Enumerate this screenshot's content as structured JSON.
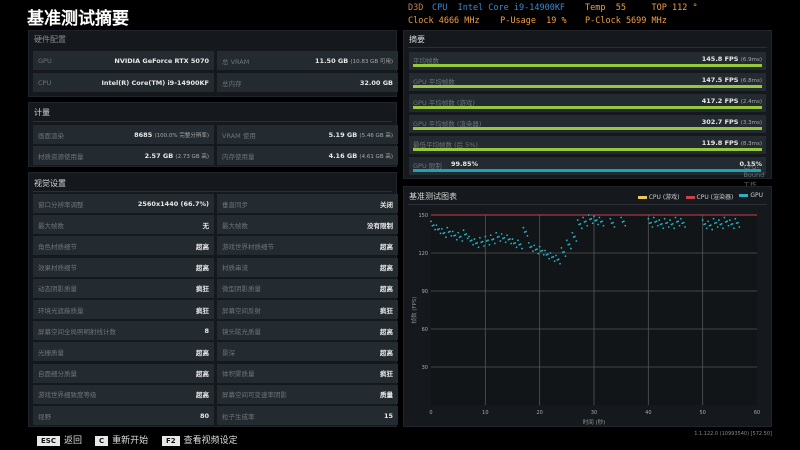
{
  "osd": {
    "line1": "D3D",
    "cpu": "CPU  Intel Core i9-14900KF",
    "temp": "Temp  55     TOP 112 °",
    "clock": "Clock 4666 MHz    P-Usage  19 %",
    "pclock": "P-Clock 5699 MHz"
  },
  "title": "基准测试摘要",
  "hardware": {
    "title": "硬件配置",
    "rows": [
      [
        {
          "label": "GPU",
          "value": "NVIDIA GeForce RTX 5070",
          "extra": ""
        },
        {
          "label": "总 VRAM",
          "value": "11.50 GB",
          "extra": "(10.83 GB 可用)"
        }
      ],
      [
        {
          "label": "CPU",
          "value": "Intel(R) Core(TM) i9-14900KF",
          "extra": ""
        },
        {
          "label": "总内存",
          "value": "32.00 GB",
          "extra": ""
        }
      ]
    ]
  },
  "metrics": {
    "title": "计量",
    "rows": [
      [
        {
          "label": "画面渲染",
          "value": "8685",
          "extra": "(100.0% 完整分辨率)"
        },
        {
          "label": "VRAM 使用",
          "value": "5.19 GB",
          "extra": "(5.46 GB 高)"
        }
      ],
      [
        {
          "label": "材质资源使用量",
          "value": "2.57 GB",
          "extra": "(2.73 GB 高)"
        },
        {
          "label": "内存使用量",
          "value": "4.16 GB",
          "extra": "(4.61 GB 高)"
        }
      ]
    ]
  },
  "visual": {
    "title": "视觉设置",
    "rows": [
      [
        {
          "label": "窗口分辨率调整",
          "value": "2560x1440 (66.7%)"
        },
        {
          "label": "垂直同步",
          "value": "关闭"
        }
      ],
      [
        {
          "label": "最大帧数",
          "value": "无"
        },
        {
          "label": "最大帧数",
          "value": "没有限制"
        }
      ],
      [
        {
          "label": "角色材质细节",
          "value": "超高"
        },
        {
          "label": "游戏世界材质细节",
          "value": "超高"
        }
      ],
      [
        {
          "label": "效果材质细节",
          "value": "超高"
        },
        {
          "label": "材质串流",
          "value": "超高"
        }
      ],
      [
        {
          "label": "动态阴影质量",
          "value": "疯狂"
        },
        {
          "label": "微型阴影质量",
          "value": "超高"
        }
      ],
      [
        {
          "label": "环境光遮蔽质量",
          "value": "疯狂"
        },
        {
          "label": "屏幕空间反射",
          "value": "疯狂"
        }
      ],
      [
        {
          "label": "屏幕空间全局照明射线计数",
          "value": "8"
        },
        {
          "label": "镜头眩光质量",
          "value": "超高"
        }
      ],
      [
        {
          "label": "光栅质量",
          "value": "超高"
        },
        {
          "label": "景深",
          "value": "超高"
        }
      ],
      [
        {
          "label": "自面细分质量",
          "value": "超高"
        },
        {
          "label": "体积雾质量",
          "value": "疯狂"
        }
      ],
      [
        {
          "label": "游戏世界细致度等级",
          "value": "超高"
        },
        {
          "label": "屏幕空间可变速率阴影",
          "value": "质量"
        }
      ],
      [
        {
          "label": "视野",
          "value": "80"
        },
        {
          "label": "粒子生成率",
          "value": "15"
        }
      ]
    ]
  },
  "summary": {
    "title": "摘要",
    "rows": [
      {
        "label": "平均帧数",
        "value": "145.8 FPS",
        "extra": "(6.9ms)",
        "fill": 1
      },
      {
        "label": "GPU 平均帧数",
        "value": "147.5 FPS",
        "extra": "(6.8ms)",
        "fill": 1
      },
      {
        "label": "GPU 平均帧数 (游戏)",
        "value": "417.2 FPS",
        "extra": "(2.4ms)",
        "fill": 1
      },
      {
        "label": "GPU 平均帧数 (渲染器)",
        "value": "302.7 FPS",
        "extra": "(3.3ms)",
        "fill": 1
      },
      {
        "label": "最低平均帧数 (后 5%)",
        "value": "119.8 FPS",
        "extra": "(8.3ms)",
        "fill": 1
      }
    ],
    "gpu_bound": {
      "label": "GPU 限制",
      "pct": "99.85%",
      "cpu_pct": "0.15%",
      "cpu_label": "CPU-Bound 工作",
      "fill": 0.9985
    }
  },
  "chart_data": {
    "type": "scatter",
    "title": "基准测试图表",
    "xlabel": "时间 (秒)",
    "ylabel": "帧数 (FPS)",
    "xlim": [
      0,
      60
    ],
    "ylim": [
      0,
      150
    ],
    "xticks": [
      "0",
      "10",
      "20",
      "30",
      "40",
      "50",
      "60"
    ],
    "yticks": [
      "30",
      "60",
      "90",
      "120",
      "150"
    ],
    "grid": true,
    "legend": "top-right",
    "series": [
      {
        "name": "CPU (游戏)",
        "color": "#e8c85a",
        "x": [],
        "y": []
      },
      {
        "name": "CPU (渲染器)",
        "color": "#c8404a",
        "x": [
          0,
          60
        ],
        "y": [
          150,
          150
        ]
      },
      {
        "name": "GPU",
        "color": "#2ab0c0",
        "x": [
          0,
          1,
          2,
          3,
          4,
          5,
          6,
          7,
          8,
          9,
          10,
          11,
          12,
          13,
          14,
          15,
          16,
          17,
          18,
          19,
          20,
          21,
          22,
          23,
          24,
          25,
          26,
          27,
          28,
          29,
          30,
          31,
          33,
          35,
          40,
          41,
          42,
          43,
          44,
          45,
          46,
          50,
          51,
          52,
          53,
          54,
          55,
          56
        ],
        "y": [
          145,
          142,
          139,
          140,
          137,
          136,
          138,
          133,
          131,
          132,
          133,
          134,
          136,
          135,
          134,
          131,
          130,
          140,
          128,
          126,
          125,
          122,
          120,
          118,
          124,
          130,
          136,
          146,
          148,
          150,
          149,
          148,
          147,
          148,
          147,
          148,
          146,
          147,
          146,
          148,
          147,
          146,
          145,
          147,
          146,
          148,
          146,
          147
        ]
      }
    ]
  },
  "footer": {
    "keys": [
      {
        "key": "ESC",
        "label": "返回"
      },
      {
        "key": "C",
        "label": "重新开始"
      },
      {
        "key": "F2",
        "label": "查看视频设定"
      }
    ],
    "version": "1.1.122.0 (10993540) [572.50]"
  }
}
